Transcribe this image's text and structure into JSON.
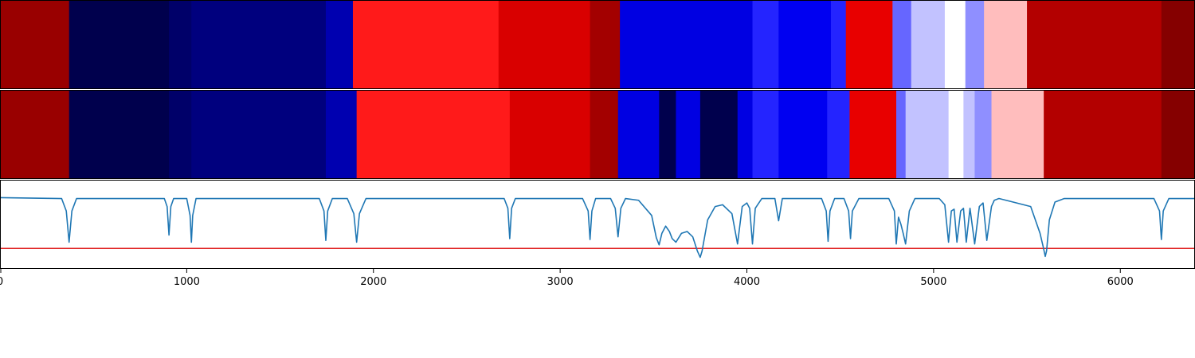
{
  "chart_data": [
    {
      "type": "heatmap",
      "xlim": [
        0,
        6400
      ],
      "colormap": "seismic",
      "segments": [
        {
          "start": 0,
          "end": 370,
          "value": 0.9
        },
        {
          "start": 370,
          "end": 905,
          "value": -1.0
        },
        {
          "start": 905,
          "end": 1025,
          "value": -0.92
        },
        {
          "start": 1025,
          "end": 1745,
          "value": -0.86
        },
        {
          "start": 1745,
          "end": 1890,
          "value": -0.72
        },
        {
          "start": 1890,
          "end": 2670,
          "value": 0.45
        },
        {
          "start": 2670,
          "end": 3160,
          "value": 0.65
        },
        {
          "start": 3160,
          "end": 3320,
          "value": 0.86
        },
        {
          "start": 3320,
          "end": 4030,
          "value": -0.58
        },
        {
          "start": 4030,
          "end": 4170,
          "value": -0.43
        },
        {
          "start": 4170,
          "end": 4450,
          "value": -0.54
        },
        {
          "start": 4450,
          "end": 4530,
          "value": -0.43
        },
        {
          "start": 4530,
          "end": 4780,
          "value": 0.59
        },
        {
          "start": 4780,
          "end": 4880,
          "value": -0.3
        },
        {
          "start": 4880,
          "end": 5060,
          "value": -0.12
        },
        {
          "start": 5060,
          "end": 5170,
          "value": 0.0
        },
        {
          "start": 5170,
          "end": 5270,
          "value": -0.22
        },
        {
          "start": 5270,
          "end": 5500,
          "value": 0.13
        },
        {
          "start": 5500,
          "end": 6220,
          "value": 0.8
        },
        {
          "start": 6220,
          "end": 6400,
          "value": 0.98
        }
      ]
    },
    {
      "type": "heatmap",
      "xlim": [
        0,
        6400
      ],
      "colormap": "seismic",
      "segments": [
        {
          "start": 0,
          "end": 370,
          "value": 0.9
        },
        {
          "start": 370,
          "end": 905,
          "value": -1.0
        },
        {
          "start": 905,
          "end": 1025,
          "value": -0.92
        },
        {
          "start": 1025,
          "end": 1745,
          "value": -0.86
        },
        {
          "start": 1745,
          "end": 1910,
          "value": -0.72
        },
        {
          "start": 1910,
          "end": 2730,
          "value": 0.45
        },
        {
          "start": 2730,
          "end": 3160,
          "value": 0.65
        },
        {
          "start": 3160,
          "end": 3310,
          "value": 0.86
        },
        {
          "start": 3310,
          "end": 3530,
          "value": -0.58
        },
        {
          "start": 3530,
          "end": 3620,
          "value": -1.0
        },
        {
          "start": 3620,
          "end": 3750,
          "value": -0.58
        },
        {
          "start": 3750,
          "end": 3950,
          "value": -1.0
        },
        {
          "start": 3950,
          "end": 4030,
          "value": -0.58
        },
        {
          "start": 4030,
          "end": 4170,
          "value": -0.43
        },
        {
          "start": 4170,
          "end": 4430,
          "value": -0.54
        },
        {
          "start": 4430,
          "end": 4550,
          "value": -0.43
        },
        {
          "start": 4550,
          "end": 4800,
          "value": 0.59
        },
        {
          "start": 4800,
          "end": 4850,
          "value": -0.3
        },
        {
          "start": 4850,
          "end": 5080,
          "value": -0.12
        },
        {
          "start": 5080,
          "end": 5160,
          "value": 0.0
        },
        {
          "start": 5160,
          "end": 5220,
          "value": -0.12
        },
        {
          "start": 5220,
          "end": 5310,
          "value": -0.22
        },
        {
          "start": 5310,
          "end": 5590,
          "value": 0.13
        },
        {
          "start": 5590,
          "end": 6220,
          "value": 0.8
        },
        {
          "start": 6220,
          "end": 6400,
          "value": 0.98
        }
      ]
    },
    {
      "type": "line",
      "xlim": [
        0,
        6400
      ],
      "ylim": [
        -0.8,
        0.2
      ],
      "threshold": -0.57,
      "threshold_color": "#e02020",
      "line_color": "#1f77b4",
      "baseline": 0.0,
      "x": [
        0,
        330,
        355,
        370,
        385,
        410,
        880,
        895,
        905,
        915,
        930,
        1000,
        1018,
        1025,
        1032,
        1050,
        1710,
        1735,
        1745,
        1755,
        1780,
        1860,
        1895,
        1910,
        1925,
        1960,
        2700,
        2720,
        2730,
        2740,
        2760,
        3120,
        3150,
        3160,
        3170,
        3190,
        3270,
        3295,
        3310,
        3325,
        3350,
        3420,
        3490,
        3515,
        3530,
        3545,
        3565,
        3585,
        3600,
        3620,
        3650,
        3680,
        3710,
        3735,
        3750,
        3760,
        3790,
        3830,
        3870,
        3920,
        3950,
        3975,
        4000,
        4015,
        4030,
        4045,
        4080,
        4150,
        4170,
        4190,
        4220,
        4400,
        4425,
        4435,
        4445,
        4470,
        4520,
        4545,
        4555,
        4565,
        4600,
        4760,
        4790,
        4800,
        4812,
        4825,
        4837,
        4850,
        4870,
        4900,
        5030,
        5060,
        5080,
        5095,
        5110,
        5125,
        5145,
        5160,
        5175,
        5195,
        5220,
        5245,
        5265,
        5285,
        5310,
        5325,
        5350,
        5520,
        5570,
        5590,
        5598,
        5605,
        5620,
        5650,
        5700,
        6180,
        6210,
        6220,
        6230,
        6260,
        6400
      ],
      "y": [
        0.0,
        -0.01,
        -0.15,
        -0.5,
        -0.15,
        -0.01,
        -0.01,
        -0.1,
        -0.42,
        -0.1,
        -0.01,
        -0.01,
        -0.2,
        -0.5,
        -0.2,
        -0.01,
        -0.01,
        -0.15,
        -0.48,
        -0.15,
        -0.01,
        -0.01,
        -0.18,
        -0.5,
        -0.18,
        -0.01,
        -0.01,
        -0.12,
        -0.46,
        -0.12,
        -0.01,
        -0.01,
        -0.15,
        -0.47,
        -0.15,
        -0.01,
        -0.01,
        -0.12,
        -0.44,
        -0.12,
        -0.01,
        -0.03,
        -0.2,
        -0.45,
        -0.53,
        -0.4,
        -0.32,
        -0.38,
        -0.46,
        -0.5,
        -0.4,
        -0.38,
        -0.44,
        -0.6,
        -0.67,
        -0.6,
        -0.25,
        -0.1,
        -0.08,
        -0.18,
        -0.52,
        -0.1,
        -0.06,
        -0.12,
        -0.52,
        -0.12,
        -0.01,
        -0.01,
        -0.26,
        -0.01,
        -0.01,
        -0.01,
        -0.15,
        -0.49,
        -0.15,
        -0.01,
        -0.01,
        -0.15,
        -0.46,
        -0.15,
        -0.01,
        -0.01,
        -0.15,
        -0.52,
        -0.22,
        -0.3,
        -0.4,
        -0.52,
        -0.15,
        -0.01,
        -0.01,
        -0.08,
        -0.5,
        -0.15,
        -0.13,
        -0.5,
        -0.15,
        -0.12,
        -0.5,
        -0.12,
        -0.52,
        -0.1,
        -0.06,
        -0.48,
        -0.1,
        -0.03,
        -0.01,
        -0.1,
        -0.4,
        -0.58,
        -0.66,
        -0.6,
        -0.25,
        -0.05,
        -0.01,
        -0.01,
        -0.15,
        -0.47,
        -0.15,
        -0.01,
        -0.01
      ]
    }
  ],
  "xaxis": {
    "ticks": [
      0,
      1000,
      2000,
      3000,
      4000,
      5000,
      6000
    ],
    "tick_labels": [
      "0",
      "1000",
      "2000",
      "3000",
      "4000",
      "5000",
      "6000"
    ]
  }
}
